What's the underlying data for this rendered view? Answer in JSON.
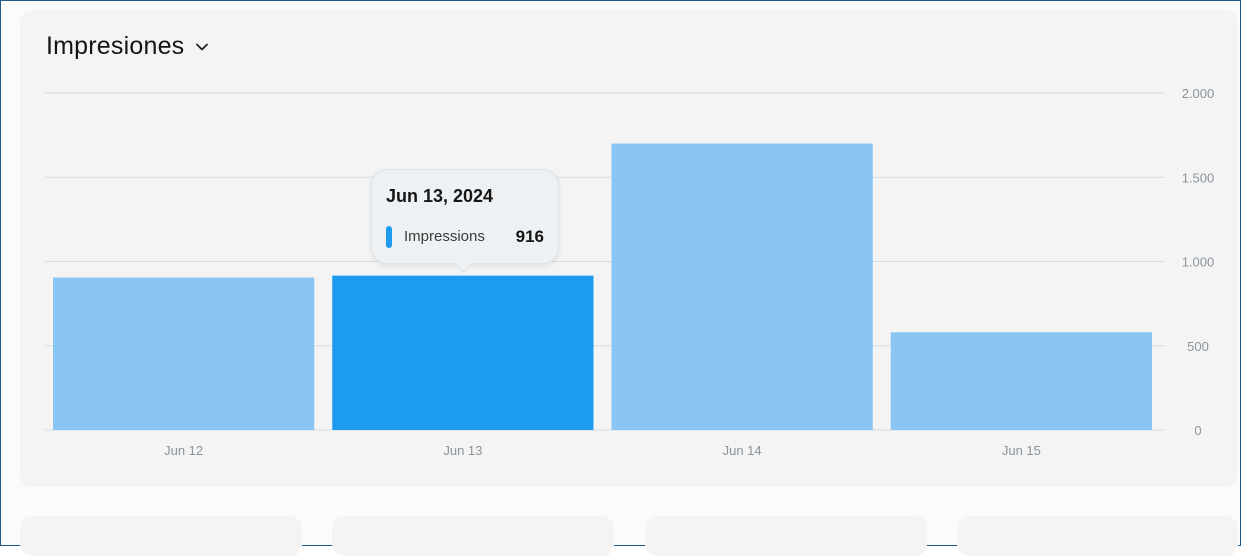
{
  "header": {
    "title": "Impresiones"
  },
  "icons": {
    "title_dropdown": "chevron-down-icon"
  },
  "colors": {
    "bar": "#89c6f3",
    "bar_active": "#1d9bf0",
    "grid": "#d4dde3",
    "text_muted": "#8a939b"
  },
  "tooltip": {
    "date": "Jun 13, 2024",
    "series_label": "Impressions",
    "value": "916"
  },
  "chart_data": {
    "type": "bar",
    "categories": [
      "Jun 12",
      "Jun 13",
      "Jun 14",
      "Jun 15"
    ],
    "series": [
      {
        "name": "Impressions",
        "values": [
          905,
          916,
          1700,
          580
        ]
      }
    ],
    "active_index": 1,
    "ylim": [
      0,
      2000
    ],
    "yticks": [
      0,
      500,
      1000,
      1500,
      2000
    ],
    "ytick_labels": [
      "0",
      "500",
      "1.000",
      "1.500",
      "2.000"
    ],
    "grid": true,
    "y_axis_position": "right"
  }
}
